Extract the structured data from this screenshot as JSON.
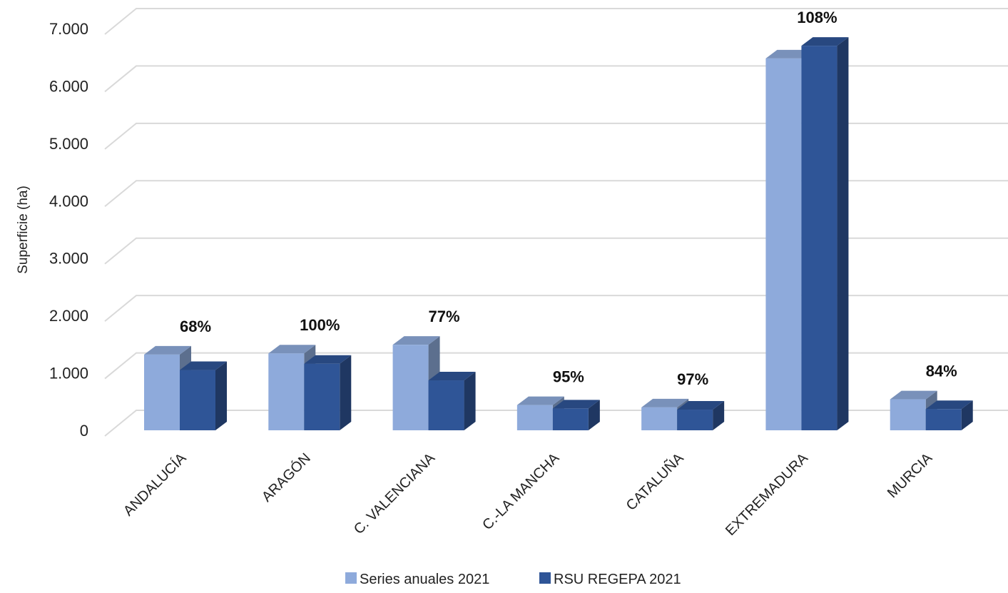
{
  "chart_data": {
    "type": "bar",
    "title": "",
    "xlabel": "",
    "ylabel": "Superficie (ha)",
    "ylim": [
      0,
      7000
    ],
    "yticks": [
      0,
      1000,
      2000,
      3000,
      4000,
      5000,
      6000,
      7000
    ],
    "ytick_labels": [
      "0",
      "1.000",
      "2.000",
      "3.000",
      "4.000",
      "5.000",
      "6.000",
      "7.000"
    ],
    "categories": [
      "ANDALUCÍA",
      "ARAGÓN",
      "C. VALENCIANA",
      "C.-LA MANCHA",
      "CATALUÑA",
      "EXTREMADURA",
      "MURCIA"
    ],
    "series": [
      {
        "name": "Series anuales 2021",
        "color": "#8eaadb",
        "values": [
          1320,
          1340,
          1490,
          440,
          400,
          6480,
          540
        ]
      },
      {
        "name": "RSU REGEPA 2021",
        "color": "#2f5597",
        "values": [
          1050,
          1160,
          870,
          380,
          360,
          6700,
          370
        ]
      }
    ],
    "data_labels": [
      "68%",
      "100%",
      "77%",
      "95%",
      "97%",
      "108%",
      "84%"
    ],
    "grid": true,
    "legend": "bottom",
    "style": "3d-clustered-column"
  }
}
